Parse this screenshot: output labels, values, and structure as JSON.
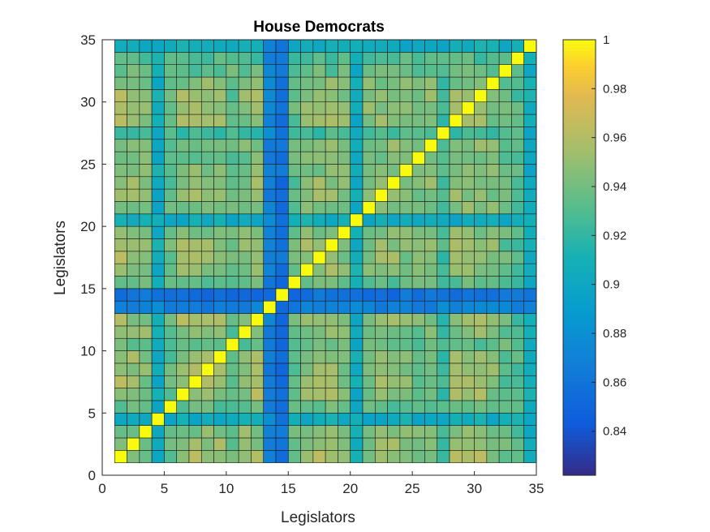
{
  "chart_data": {
    "type": "heatmap",
    "title": "House Democrats",
    "xlabel": "Legislators",
    "ylabel": "Legislators",
    "xlim": [
      0,
      35
    ],
    "ylim": [
      0,
      35
    ],
    "x_ticks": [
      "0",
      "5",
      "10",
      "15",
      "20",
      "25",
      "30",
      "35"
    ],
    "y_ticks": [
      "0",
      "5",
      "10",
      "15",
      "20",
      "25",
      "30",
      "35"
    ],
    "colormap": "parula",
    "color_range": [
      0.822,
      1.0
    ],
    "colorbar_ticks": [
      "0.84",
      "0.86",
      "0.88",
      "0.9",
      "0.92",
      "0.94",
      "0.96",
      "0.98",
      "1"
    ],
    "grid": false,
    "n": 34,
    "values_description": "Pairwise vote agreement between 34 legislators; diagonal = 1. Rows/cols 4, 13, 14, 20 and 33-34 show lower agreement.",
    "legislator_profile": [
      0.965,
      0.96,
      0.955,
      0.915,
      0.945,
      0.965,
      0.965,
      0.965,
      0.96,
      0.945,
      0.955,
      0.965,
      0.88,
      0.868,
      0.945,
      0.96,
      0.965,
      0.96,
      0.955,
      0.915,
      0.955,
      0.96,
      0.96,
      0.955,
      0.95,
      0.955,
      0.935,
      0.965,
      0.965,
      0.965,
      0.955,
      0.945,
      0.94,
      0.915
    ]
  }
}
